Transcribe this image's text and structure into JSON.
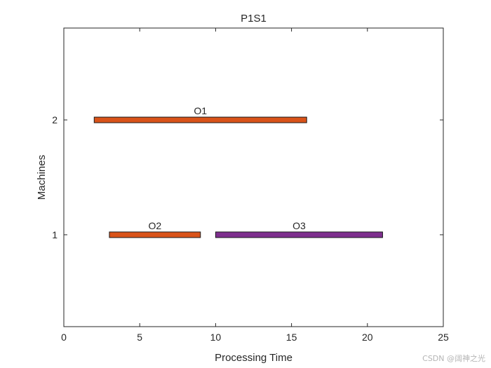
{
  "chart_data": {
    "type": "gantt",
    "title": "P1S1",
    "xlabel": "Processing Time",
    "ylabel": "Machines",
    "xlim": [
      0,
      25
    ],
    "ylim": [
      0.2,
      2.8
    ],
    "xticks": [
      0,
      5,
      10,
      15,
      20,
      25
    ],
    "yticks": [
      1,
      2
    ],
    "grid": false,
    "legend": "none",
    "tasks": [
      {
        "label": "O1",
        "machine": 2,
        "start": 2,
        "end": 16,
        "color": "#d95319"
      },
      {
        "label": "O2",
        "machine": 1,
        "start": 3,
        "end": 9,
        "color": "#d95319"
      },
      {
        "label": "O3",
        "machine": 1,
        "start": 10,
        "end": 21,
        "color": "#7e2f8e"
      }
    ]
  },
  "watermark": "CSDN @阔神之光"
}
